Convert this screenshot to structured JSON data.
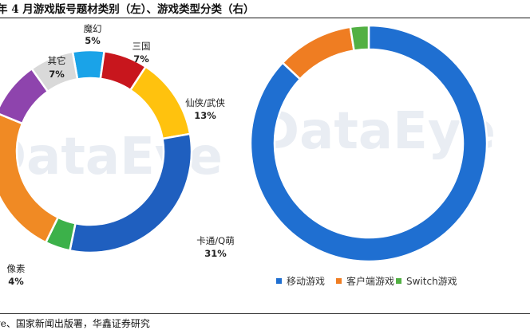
{
  "title": "年 4 月游戏版号题材类别（左）、游戏类型分类（右）",
  "source": "ye、国家新闻出版署，华鑫证券研究",
  "watermark": "DataEye",
  "chart_data": [
    {
      "type": "pie",
      "variant": "donut",
      "title": "游戏版号题材类别",
      "slices": [
        {
          "label": "魔幻",
          "pct_label": "5%",
          "value": 5,
          "color": "#1aa3e8"
        },
        {
          "label": "三国",
          "pct_label": "7%",
          "value": 7,
          "color": "#c8161d"
        },
        {
          "label": "仙侠/武侠",
          "pct_label": "13%",
          "value": 13,
          "color": "#ffc20e"
        },
        {
          "label": "卡通/Q萌",
          "pct_label": "31%",
          "value": 31,
          "color": "#1f5fbf"
        },
        {
          "label": "像素",
          "pct_label": "4%",
          "value": 4,
          "color": "#3cb14a"
        },
        {
          "label": "",
          "pct_label": "",
          "value": 24,
          "color": "#f08a24"
        },
        {
          "label": "",
          "pct_label": "",
          "value": 9,
          "color": "#8e44ad"
        },
        {
          "label": "其它",
          "pct_label": "7%",
          "value": 7,
          "color": "#d9d9d9"
        }
      ]
    },
    {
      "type": "pie",
      "variant": "donut",
      "title": "游戏类型分类",
      "legend_position": "bottom",
      "slices": [
        {
          "label": "移动游戏",
          "value": 87,
          "color": "#1f6fd1"
        },
        {
          "label": "客户端游戏",
          "value": 10.5,
          "color": "#ef7d22"
        },
        {
          "label": "Switch游戏",
          "value": 2.5,
          "color": "#52b043"
        }
      ]
    }
  ]
}
